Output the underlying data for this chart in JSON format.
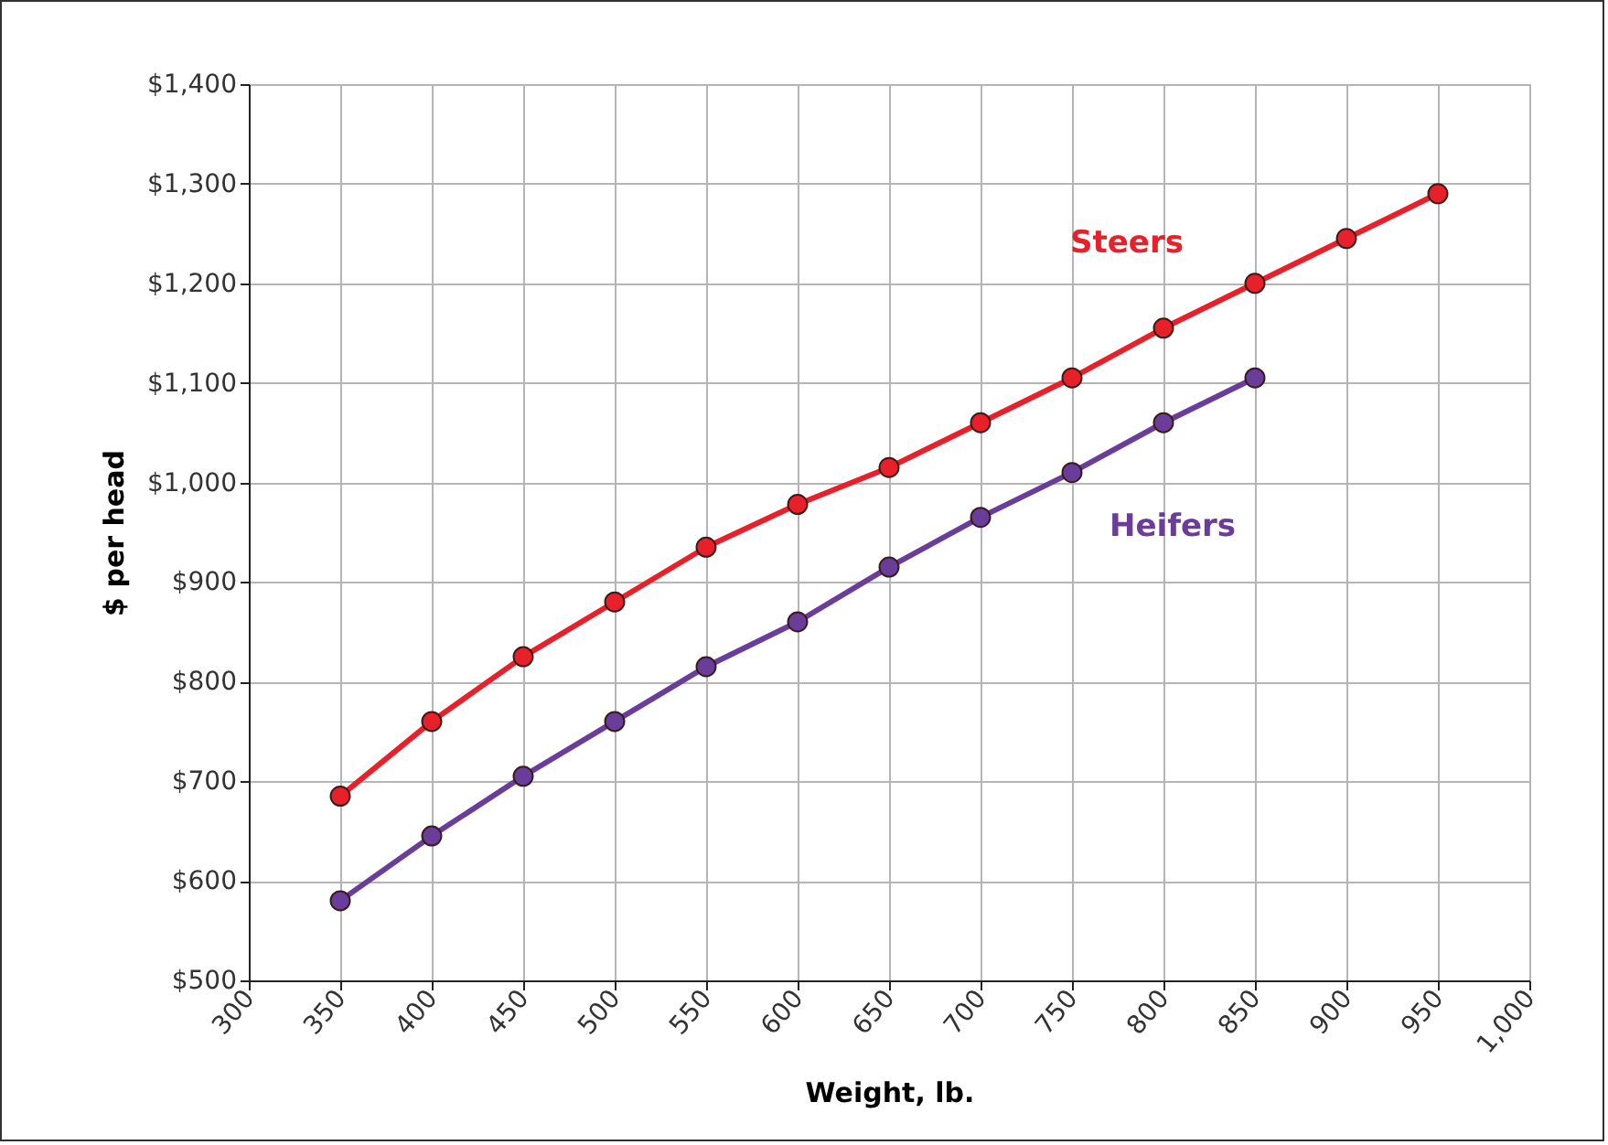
{
  "chart_data": {
    "type": "line",
    "xlabel": "Weight, lb.",
    "ylabel": "$ per head",
    "xlim": [
      300,
      1000
    ],
    "xticks": [
      300,
      350,
      400,
      450,
      500,
      550,
      600,
      650,
      700,
      750,
      800,
      850,
      900,
      950,
      {
        "value": 1000,
        "label": "1,000"
      }
    ],
    "ylim": [
      500,
      1400
    ],
    "yticks": [
      {
        "value": 500,
        "label": "$500"
      },
      {
        "value": 600,
        "label": "$600"
      },
      {
        "value": 700,
        "label": "$700"
      },
      {
        "value": 800,
        "label": "$800"
      },
      {
        "value": 900,
        "label": "$900"
      },
      {
        "value": 1000,
        "label": "$1,000"
      },
      {
        "value": 1100,
        "label": "$1,100"
      },
      {
        "value": 1200,
        "label": "$1,200"
      },
      {
        "value": 1300,
        "label": "$1,300"
      },
      {
        "value": 1400,
        "label": "$1,400"
      }
    ],
    "grid": true,
    "legend": false,
    "marker": "circle",
    "line_style": "solid",
    "series": [
      {
        "name": "Steers",
        "color": "#e8202a",
        "x": [
          350,
          400,
          450,
          500,
          550,
          600,
          650,
          700,
          750,
          800,
          850,
          900,
          950
        ],
        "values": [
          685,
          760,
          825,
          880,
          935,
          978,
          1015,
          1060,
          1105,
          1155,
          1200,
          1245,
          1290
        ]
      },
      {
        "name": "Heifers",
        "color": "#6a3d9a",
        "x": [
          350,
          400,
          450,
          500,
          550,
          600,
          650,
          700,
          750,
          800,
          850
        ],
        "values": [
          580,
          645,
          705,
          760,
          815,
          860,
          915,
          965,
          1010,
          1060,
          1105
        ]
      }
    ]
  }
}
